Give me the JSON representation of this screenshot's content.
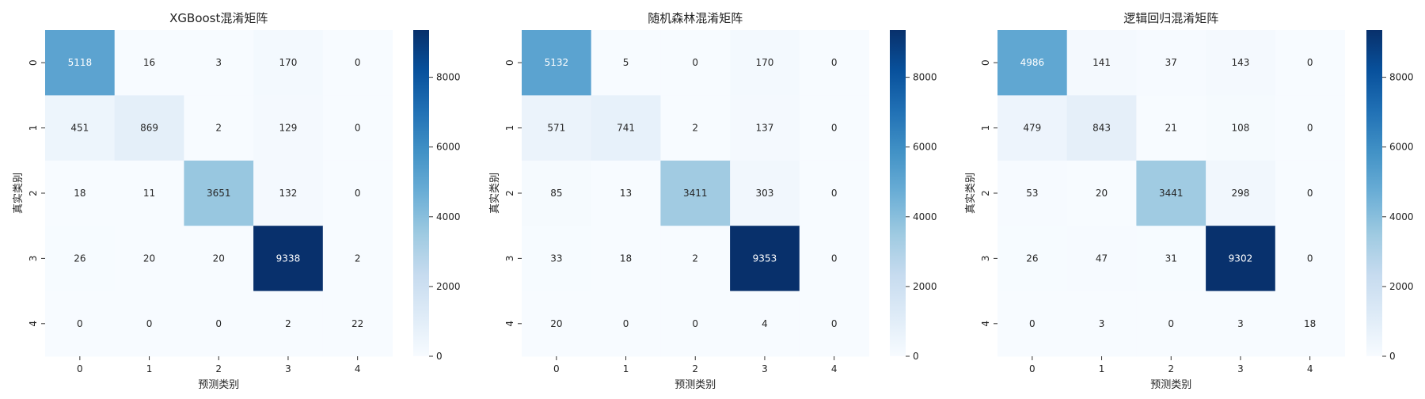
{
  "colorbar": {
    "max": 9353,
    "ticks": [
      0,
      2000,
      4000,
      6000,
      8000
    ]
  },
  "chart_data": [
    {
      "type": "heatmap",
      "title": "XGBoost混淆矩阵",
      "xlabel": "预测类别",
      "ylabel": "真实类别",
      "x_categories": [
        "0",
        "1",
        "2",
        "3",
        "4"
      ],
      "y_categories": [
        "0",
        "1",
        "2",
        "3",
        "4"
      ],
      "colormap": "Blues",
      "values": [
        [
          5118,
          16,
          3,
          170,
          0
        ],
        [
          451,
          869,
          2,
          129,
          0
        ],
        [
          18,
          11,
          3651,
          132,
          0
        ],
        [
          26,
          20,
          20,
          9338,
          2
        ],
        [
          0,
          0,
          0,
          2,
          22
        ]
      ]
    },
    {
      "type": "heatmap",
      "title": "随机森林混淆矩阵",
      "xlabel": "预测类别",
      "ylabel": "真实类别",
      "x_categories": [
        "0",
        "1",
        "2",
        "3",
        "4"
      ],
      "y_categories": [
        "0",
        "1",
        "2",
        "3",
        "4"
      ],
      "colormap": "Blues",
      "values": [
        [
          5132,
          5,
          0,
          170,
          0
        ],
        [
          571,
          741,
          2,
          137,
          0
        ],
        [
          85,
          13,
          3411,
          303,
          0
        ],
        [
          33,
          18,
          2,
          9353,
          0
        ],
        [
          20,
          0,
          0,
          4,
          0
        ]
      ]
    },
    {
      "type": "heatmap",
      "title": "逻辑回归混淆矩阵",
      "xlabel": "预测类别",
      "ylabel": "真实类别",
      "x_categories": [
        "0",
        "1",
        "2",
        "3",
        "4"
      ],
      "y_categories": [
        "0",
        "1",
        "2",
        "3",
        "4"
      ],
      "colormap": "Blues",
      "values": [
        [
          4986,
          141,
          37,
          143,
          0
        ],
        [
          479,
          843,
          21,
          108,
          0
        ],
        [
          53,
          20,
          3441,
          298,
          0
        ],
        [
          26,
          47,
          31,
          9302,
          0
        ],
        [
          0,
          3,
          0,
          3,
          18
        ]
      ]
    }
  ]
}
